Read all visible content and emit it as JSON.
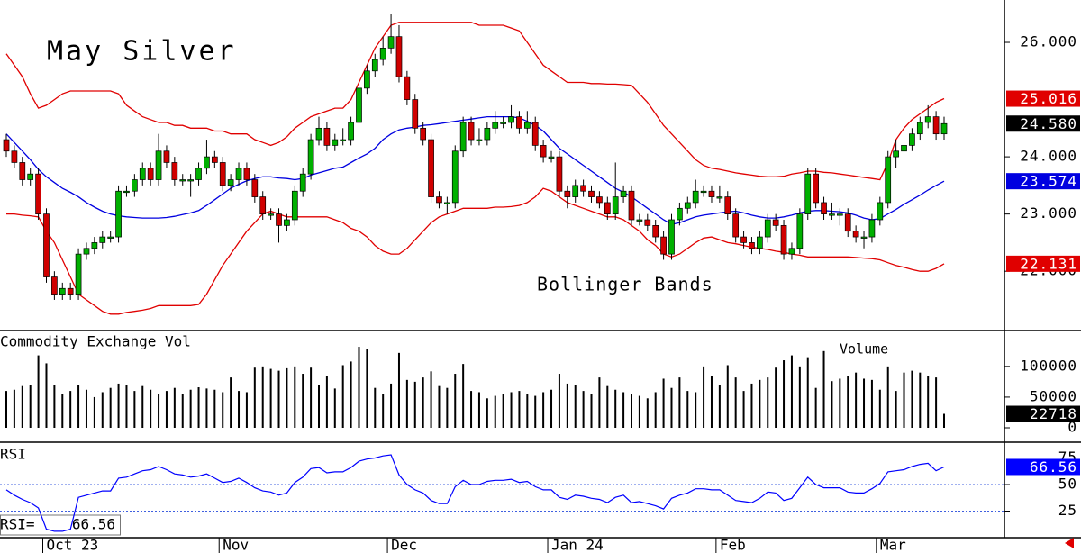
{
  "chart_data": [
    {
      "type": "candlestick",
      "title": "May Silver",
      "annotation": "Bollinger Bands",
      "up_color": "#00b000",
      "down_color": "#d00000",
      "last_close_label": "24.580",
      "ylim": [
        20.98,
        26.74
      ],
      "yticks": [
        {
          "value": 26,
          "label": "26.000"
        },
        {
          "value": 24,
          "label": "24.000"
        },
        {
          "value": 23,
          "label": "23.000"
        },
        {
          "value": 22,
          "label": "22.000"
        }
      ],
      "open": [
        24.3,
        24.1,
        23.9,
        23.6,
        23.7,
        23.0,
        21.9,
        21.6,
        21.7,
        21.6,
        22.3,
        22.4,
        22.5,
        22.6,
        22.6,
        23.4,
        23.4,
        23.6,
        23.8,
        23.6,
        24.1,
        23.9,
        23.6,
        23.6,
        23.6,
        23.8,
        24.0,
        23.9,
        23.5,
        23.6,
        23.8,
        23.6,
        23.3,
        23.0,
        23.0,
        22.8,
        22.9,
        23.4,
        23.7,
        24.3,
        24.5,
        24.2,
        24.3,
        24.3,
        24.6,
        25.2,
        25.5,
        25.7,
        25.9,
        26.1,
        25.4,
        25.0,
        24.5,
        24.3,
        23.3,
        23.2,
        23.2,
        24.1,
        24.6,
        24.3,
        24.3,
        24.5,
        24.6,
        24.6,
        24.7,
        24.5,
        24.6,
        24.2,
        24.0,
        24.0,
        23.4,
        23.3,
        23.5,
        23.4,
        23.3,
        23.2,
        23.0,
        23.3,
        23.4,
        22.9,
        22.9,
        22.8,
        22.6,
        22.3,
        22.9,
        23.1,
        23.2,
        23.4,
        23.4,
        23.3,
        23.3,
        23.0,
        22.6,
        22.5,
        22.4,
        22.6,
        22.9,
        22.8,
        22.3,
        22.4,
        23.0,
        23.7,
        23.2,
        23.0,
        23.0,
        23.0,
        22.7,
        22.6,
        22.6,
        22.9,
        23.2,
        24.0,
        24.1,
        24.2,
        24.4,
        24.6,
        24.7,
        24.4
      ],
      "high": [
        24.4,
        24.2,
        24.0,
        23.8,
        23.8,
        23.1,
        22.0,
        21.8,
        21.8,
        22.4,
        22.5,
        22.6,
        22.7,
        22.7,
        23.5,
        23.5,
        23.7,
        23.9,
        23.9,
        24.4,
        24.2,
        24.0,
        23.7,
        23.7,
        23.9,
        24.3,
        24.1,
        24.0,
        23.7,
        23.9,
        23.9,
        23.7,
        23.4,
        23.1,
        23.1,
        23.0,
        23.5,
        23.8,
        24.4,
        24.7,
        24.6,
        24.4,
        24.5,
        24.7,
        25.3,
        25.6,
        25.8,
        26.1,
        26.5,
        26.3,
        25.5,
        25.1,
        24.6,
        24.4,
        23.4,
        23.3,
        24.2,
        24.7,
        24.7,
        24.5,
        24.6,
        24.8,
        24.7,
        24.9,
        24.8,
        24.8,
        24.7,
        24.3,
        24.1,
        24.1,
        23.5,
        23.6,
        23.6,
        23.5,
        23.4,
        23.3,
        23.9,
        23.5,
        23.5,
        23.0,
        23.0,
        22.9,
        22.7,
        23.0,
        23.2,
        23.3,
        23.6,
        23.5,
        23.5,
        23.5,
        23.4,
        23.1,
        22.7,
        22.6,
        22.7,
        23.0,
        23.0,
        22.9,
        22.5,
        23.1,
        23.8,
        23.8,
        23.3,
        23.2,
        23.1,
        23.1,
        22.8,
        22.7,
        23.0,
        23.3,
        24.1,
        24.3,
        24.4,
        24.5,
        24.7,
        24.9,
        24.8,
        24.7
      ],
      "low": [
        24.0,
        23.8,
        23.5,
        23.5,
        22.9,
        21.8,
        21.5,
        21.5,
        21.5,
        21.5,
        22.2,
        22.3,
        22.4,
        22.5,
        22.5,
        23.3,
        23.3,
        23.5,
        23.5,
        23.5,
        23.8,
        23.5,
        23.5,
        23.3,
        23.5,
        23.7,
        23.8,
        23.4,
        23.4,
        23.5,
        23.5,
        23.2,
        22.9,
        22.9,
        22.5,
        22.7,
        22.8,
        23.3,
        23.6,
        24.2,
        24.1,
        24.1,
        24.2,
        24.2,
        24.5,
        25.1,
        25.4,
        25.6,
        25.8,
        25.3,
        24.9,
        24.4,
        24.2,
        23.2,
        23.1,
        23.0,
        23.1,
        24.0,
        24.2,
        24.2,
        24.2,
        24.4,
        24.5,
        24.5,
        24.4,
        24.4,
        24.1,
        23.9,
        23.9,
        23.3,
        23.1,
        23.2,
        23.3,
        23.2,
        23.1,
        22.9,
        22.9,
        23.2,
        22.8,
        22.8,
        22.7,
        22.5,
        22.2,
        22.2,
        22.8,
        23.0,
        23.1,
        23.3,
        23.2,
        23.2,
        22.9,
        22.5,
        22.4,
        22.3,
        22.3,
        22.5,
        22.7,
        22.2,
        22.2,
        22.3,
        22.9,
        23.1,
        22.9,
        22.9,
        22.8,
        22.6,
        22.5,
        22.4,
        22.5,
        22.8,
        23.1,
        23.8,
        24.0,
        24.1,
        24.3,
        24.5,
        24.3,
        24.3
      ],
      "close": [
        24.1,
        23.9,
        23.6,
        23.7,
        23.0,
        21.9,
        21.6,
        21.7,
        21.6,
        22.3,
        22.4,
        22.5,
        22.6,
        22.6,
        23.4,
        23.4,
        23.6,
        23.8,
        23.6,
        24.1,
        23.9,
        23.6,
        23.6,
        23.6,
        23.8,
        24.0,
        23.9,
        23.5,
        23.6,
        23.8,
        23.6,
        23.3,
        23.0,
        23.0,
        22.8,
        22.9,
        23.4,
        23.7,
        24.3,
        24.5,
        24.2,
        24.3,
        24.3,
        24.6,
        25.2,
        25.5,
        25.7,
        25.9,
        26.1,
        25.4,
        25.0,
        24.5,
        24.3,
        23.3,
        23.2,
        23.2,
        24.1,
        24.6,
        24.3,
        24.3,
        24.5,
        24.6,
        24.6,
        24.7,
        24.5,
        24.6,
        24.2,
        24.0,
        24.0,
        23.4,
        23.3,
        23.5,
        23.4,
        23.3,
        23.2,
        23.0,
        23.3,
        23.4,
        22.9,
        22.9,
        22.8,
        22.6,
        22.3,
        22.9,
        23.1,
        23.2,
        23.4,
        23.4,
        23.3,
        23.3,
        23.0,
        22.6,
        22.5,
        22.4,
        22.6,
        22.9,
        22.8,
        22.3,
        22.4,
        23.0,
        23.7,
        23.2,
        23.0,
        23.0,
        23.0,
        22.7,
        22.6,
        22.6,
        22.9,
        23.2,
        24.0,
        24.1,
        24.2,
        24.4,
        24.6,
        24.7,
        24.4,
        24.58
      ],
      "bands": [
        {
          "color": "#e00000",
          "values": [
            25.8,
            25.6,
            25.4,
            25.1,
            24.85,
            24.9,
            25.0,
            25.1,
            25.15,
            25.15,
            25.15,
            25.15,
            25.15,
            25.15,
            25.1,
            24.9,
            24.8,
            24.7,
            24.65,
            24.6,
            24.6,
            24.55,
            24.55,
            24.5,
            24.5,
            24.5,
            24.45,
            24.45,
            24.4,
            24.4,
            24.4,
            24.3,
            24.25,
            24.2,
            24.25,
            24.35,
            24.5,
            24.6,
            24.7,
            24.75,
            24.8,
            24.85,
            24.85,
            25.0,
            25.3,
            25.6,
            25.9,
            26.1,
            26.3,
            26.35,
            26.35,
            26.35,
            26.35,
            26.35,
            26.35,
            26.35,
            26.35,
            26.35,
            26.35,
            26.3,
            26.3,
            26.3,
            26.3,
            26.25,
            26.2,
            26.0,
            25.8,
            25.6,
            25.5,
            25.4,
            25.3,
            25.3,
            25.3,
            25.28,
            25.28,
            25.27,
            25.27,
            25.26,
            25.25,
            25.1,
            24.95,
            24.75,
            24.55,
            24.4,
            24.25,
            24.1,
            23.95,
            23.85,
            23.8,
            23.78,
            23.75,
            23.72,
            23.7,
            23.68,
            23.66,
            23.65,
            23.65,
            23.66,
            23.7,
            23.72,
            23.75,
            23.75,
            23.73,
            23.72,
            23.7,
            23.68,
            23.66,
            23.64,
            23.62,
            23.6,
            23.9,
            24.3,
            24.5,
            24.65,
            24.75,
            24.85,
            24.95,
            25.016
          ]
        },
        {
          "color": "#0000e0",
          "values": [
            24.4,
            24.25,
            24.1,
            23.95,
            23.78,
            23.65,
            23.55,
            23.45,
            23.38,
            23.3,
            23.2,
            23.12,
            23.05,
            23.0,
            22.97,
            22.95,
            22.94,
            22.93,
            22.93,
            22.93,
            22.94,
            22.96,
            22.99,
            23.02,
            23.06,
            23.15,
            23.25,
            23.35,
            23.45,
            23.52,
            23.58,
            23.62,
            23.65,
            23.65,
            23.63,
            23.62,
            23.6,
            23.62,
            23.68,
            23.72,
            23.76,
            23.8,
            23.82,
            23.9,
            23.98,
            24.05,
            24.15,
            24.3,
            24.4,
            24.47,
            24.5,
            24.52,
            24.55,
            24.56,
            24.58,
            24.6,
            24.62,
            24.64,
            24.66,
            24.68,
            24.7,
            24.7,
            24.7,
            24.7,
            24.68,
            24.62,
            24.55,
            24.45,
            24.3,
            24.15,
            24.05,
            23.95,
            23.85,
            23.75,
            23.65,
            23.55,
            23.45,
            23.38,
            23.3,
            23.2,
            23.1,
            23.0,
            22.9,
            22.82,
            22.85,
            22.9,
            22.95,
            22.98,
            23.0,
            23.02,
            23.04,
            23.05,
            23.02,
            22.98,
            22.95,
            22.93,
            22.93,
            22.95,
            22.98,
            23.02,
            23.05,
            23.06,
            23.06,
            23.05,
            23.04,
            23.02,
            22.98,
            22.93,
            22.9,
            22.92,
            23.0,
            23.08,
            23.17,
            23.25,
            23.33,
            23.42,
            23.5,
            23.574
          ]
        },
        {
          "color": "#e00000",
          "values": [
            23.0,
            23.0,
            22.98,
            22.97,
            22.95,
            22.7,
            22.5,
            22.2,
            21.9,
            21.6,
            21.5,
            21.4,
            21.3,
            21.25,
            21.25,
            21.28,
            21.3,
            21.32,
            21.35,
            21.4,
            21.4,
            21.4,
            21.4,
            21.4,
            21.42,
            21.6,
            21.85,
            22.1,
            22.3,
            22.5,
            22.7,
            22.85,
            23.0,
            23.05,
            23.0,
            22.95,
            22.95,
            22.95,
            22.95,
            22.95,
            22.95,
            22.9,
            22.85,
            22.75,
            22.7,
            22.6,
            22.45,
            22.35,
            22.3,
            22.3,
            22.4,
            22.55,
            22.7,
            22.85,
            22.95,
            23.0,
            23.05,
            23.1,
            23.1,
            23.1,
            23.1,
            23.12,
            23.12,
            23.13,
            23.15,
            23.2,
            23.3,
            23.45,
            23.4,
            23.3,
            23.2,
            23.15,
            23.1,
            23.05,
            23.0,
            22.95,
            22.95,
            22.9,
            22.8,
            22.7,
            22.55,
            22.45,
            22.3,
            22.25,
            22.3,
            22.4,
            22.5,
            22.58,
            22.6,
            22.55,
            22.5,
            22.48,
            22.45,
            22.42,
            22.4,
            22.38,
            22.35,
            22.33,
            22.3,
            22.28,
            22.25,
            22.25,
            22.25,
            22.25,
            22.25,
            22.25,
            22.24,
            22.23,
            22.22,
            22.2,
            22.15,
            22.1,
            22.07,
            22.03,
            22.0,
            22.0,
            22.05,
            22.131
          ]
        }
      ]
    },
    {
      "type": "bar",
      "title": "Commodity Exchange Vol",
      "annotation": "Volume",
      "color": "#000000",
      "ylim": [
        -22000,
        157000
      ],
      "yticks": [
        100000,
        50000,
        0
      ],
      "values": [
        60000,
        62000,
        68000,
        70000,
        118000,
        105000,
        70000,
        55000,
        60000,
        70000,
        62000,
        50000,
        58000,
        65000,
        72000,
        70000,
        60000,
        68000,
        62000,
        55000,
        60000,
        65000,
        55000,
        62000,
        66000,
        64000,
        62000,
        58000,
        82000,
        60000,
        58000,
        98000,
        100000,
        96000,
        93000,
        97000,
        100000,
        88000,
        98000,
        70000,
        85000,
        64000,
        102000,
        108000,
        132000,
        128000,
        65000,
        55000,
        72000,
        122000,
        78000,
        75000,
        82000,
        92000,
        68000,
        65000,
        88000,
        104000,
        60000,
        58000,
        48000,
        52000,
        55000,
        58000,
        60000,
        55000,
        52000,
        58000,
        62000,
        88000,
        72000,
        70000,
        60000,
        55000,
        82000,
        68000,
        62000,
        58000,
        55000,
        52000,
        48000,
        58000,
        80000,
        65000,
        82000,
        60000,
        58000,
        100000,
        84000,
        70000,
        102000,
        82000,
        60000,
        72000,
        78000,
        82000,
        98000,
        110000,
        118000,
        100000,
        115000,
        65000,
        125000,
        76000,
        80000,
        84000,
        90000,
        80000,
        78000,
        62000,
        100000,
        60000,
        90000,
        93000,
        90000,
        84000,
        82000,
        22718
      ]
    },
    {
      "type": "line",
      "title": "RSI",
      "readout_label": "RSI=",
      "color": "#0000ff",
      "grid": true,
      "ylim": [
        0,
        89
      ],
      "yticks": [
        75,
        50,
        25
      ],
      "categories": [
        null,
        null,
        null,
        null,
        null,
        "Oct 23",
        null,
        null,
        null,
        null,
        null,
        null,
        null,
        null,
        null,
        null,
        null,
        null,
        null,
        null,
        null,
        null,
        null,
        null,
        null,
        null,
        null,
        "Nov",
        null,
        null,
        null,
        null,
        null,
        null,
        null,
        null,
        null,
        null,
        null,
        null,
        null,
        null,
        null,
        null,
        null,
        null,
        null,
        null,
        "Dec",
        null,
        null,
        null,
        null,
        null,
        null,
        null,
        null,
        null,
        null,
        null,
        null,
        null,
        null,
        null,
        null,
        null,
        null,
        null,
        "Jan 24",
        null,
        null,
        null,
        null,
        null,
        null,
        null,
        null,
        null,
        null,
        null,
        null,
        null,
        null,
        null,
        null,
        null,
        null,
        null,
        null,
        "Feb",
        null,
        null,
        null,
        null,
        null,
        null,
        null,
        null,
        null,
        null,
        null,
        null,
        null,
        null,
        null,
        null,
        null,
        null,
        null,
        "Mar",
        null,
        null,
        null,
        null,
        null,
        null,
        null,
        null
      ],
      "values": [
        45,
        40,
        36,
        33,
        28,
        8,
        6,
        6,
        8,
        38,
        40,
        42,
        44,
        44,
        56,
        57,
        60,
        63,
        64,
        67,
        64,
        60,
        59,
        57,
        58,
        60,
        56,
        52,
        53,
        56,
        52,
        47,
        44,
        43,
        40,
        42,
        52,
        57,
        65,
        66,
        61,
        62,
        62,
        66,
        72,
        74,
        75,
        77,
        78,
        59,
        50,
        45,
        42,
        35,
        32,
        32,
        48,
        54,
        50,
        50,
        53,
        54,
        54,
        55,
        52,
        53,
        48,
        45,
        45,
        38,
        36,
        40,
        39,
        37,
        36,
        33,
        38,
        40,
        33,
        34,
        32,
        30,
        27,
        37,
        40,
        42,
        46,
        46,
        45,
        45,
        40,
        35,
        34,
        33,
        37,
        43,
        42,
        35,
        37,
        47,
        57,
        50,
        47,
        47,
        47,
        43,
        42,
        42,
        46,
        51,
        62,
        63,
        64,
        67,
        69,
        70,
        63,
        66.56
      ]
    }
  ]
}
